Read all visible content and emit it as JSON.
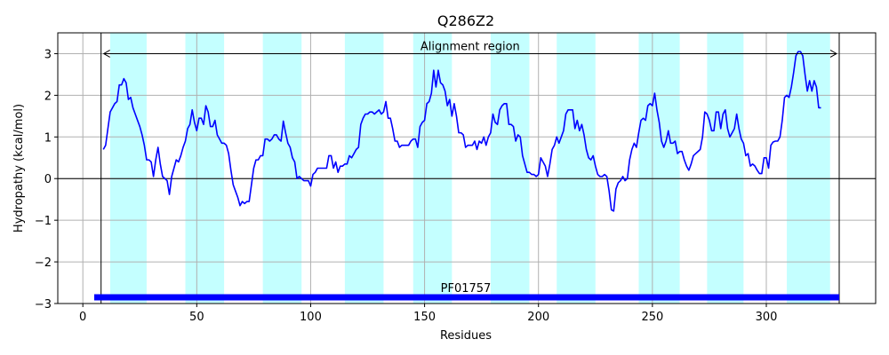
{
  "chart_data": {
    "type": "line",
    "title": "Q286Z2",
    "xlabel": "Residues",
    "ylabel": "Hydropathy (kcal/mol)",
    "xlim": [
      -11,
      348
    ],
    "ylim": [
      -3,
      3.5
    ],
    "x_ticks": [
      0,
      50,
      100,
      150,
      200,
      250,
      300
    ],
    "y_ticks": [
      -3,
      -2,
      -1,
      0,
      1,
      2,
      3
    ],
    "y_tick_labels": [
      "−3",
      "−2",
      "−1",
      "0",
      "1",
      "2",
      "3"
    ],
    "grid": true,
    "line_color": "#0000ff",
    "band_color": "#c4ffff",
    "domain_color": "#0000ff",
    "highlight_bands": [
      [
        12,
        28
      ],
      [
        45,
        62
      ],
      [
        79,
        96
      ],
      [
        115,
        132
      ],
      [
        145,
        162
      ],
      [
        179,
        196
      ],
      [
        208,
        225
      ],
      [
        244,
        262
      ],
      [
        274,
        290
      ],
      [
        309,
        328
      ]
    ],
    "alignment_region": {
      "label": "Alignment region",
      "start": 8,
      "end": 332,
      "y": 3
    },
    "domain": {
      "label": "PF01757",
      "start": 5,
      "end": 332,
      "y": -2.85
    },
    "series": [
      {
        "points": [
          [
            9,
            0.7
          ],
          [
            10,
            0.8
          ],
          [
            11,
            1.2
          ],
          [
            12,
            1.6
          ],
          [
            13,
            1.7
          ],
          [
            14,
            1.8
          ],
          [
            15,
            1.85
          ],
          [
            16,
            2.25
          ],
          [
            17,
            2.25
          ],
          [
            18,
            2.4
          ],
          [
            19,
            2.3
          ],
          [
            20,
            1.9
          ],
          [
            21,
            1.95
          ],
          [
            22,
            1.7
          ],
          [
            23,
            1.55
          ],
          [
            24,
            1.4
          ],
          [
            25,
            1.25
          ],
          [
            26,
            1.05
          ],
          [
            27,
            0.8
          ],
          [
            28,
            0.45
          ],
          [
            29,
            0.45
          ],
          [
            30,
            0.4
          ],
          [
            31,
            0.05
          ],
          [
            32,
            0.45
          ],
          [
            33,
            0.75
          ],
          [
            34,
            0.35
          ],
          [
            35,
            0.05
          ],
          [
            36,
            0.0
          ],
          [
            37,
            -0.05
          ],
          [
            38,
            -0.38
          ],
          [
            39,
            0.05
          ],
          [
            40,
            0.25
          ],
          [
            41,
            0.45
          ],
          [
            42,
            0.4
          ],
          [
            43,
            0.55
          ],
          [
            44,
            0.75
          ],
          [
            45,
            0.9
          ],
          [
            46,
            1.2
          ],
          [
            47,
            1.3
          ],
          [
            48,
            1.65
          ],
          [
            49,
            1.35
          ],
          [
            50,
            1.15
          ],
          [
            51,
            1.45
          ],
          [
            52,
            1.45
          ],
          [
            53,
            1.3
          ],
          [
            54,
            1.75
          ],
          [
            55,
            1.6
          ],
          [
            56,
            1.25
          ],
          [
            57,
            1.25
          ],
          [
            58,
            1.4
          ],
          [
            59,
            1.05
          ],
          [
            60,
            0.95
          ],
          [
            61,
            0.85
          ],
          [
            62,
            0.85
          ],
          [
            63,
            0.8
          ],
          [
            64,
            0.6
          ],
          [
            65,
            0.2
          ],
          [
            66,
            -0.15
          ],
          [
            67,
            -0.3
          ],
          [
            68,
            -0.45
          ],
          [
            69,
            -0.65
          ],
          [
            70,
            -0.55
          ],
          [
            71,
            -0.6
          ],
          [
            72,
            -0.55
          ],
          [
            73,
            -0.55
          ],
          [
            74,
            -0.15
          ],
          [
            75,
            0.25
          ],
          [
            76,
            0.45
          ],
          [
            77,
            0.45
          ],
          [
            78,
            0.55
          ],
          [
            79,
            0.55
          ],
          [
            80,
            0.95
          ],
          [
            81,
            0.95
          ],
          [
            82,
            0.9
          ],
          [
            83,
            0.95
          ],
          [
            84,
            1.05
          ],
          [
            85,
            1.05
          ],
          [
            86,
            0.95
          ],
          [
            87,
            0.9
          ],
          [
            88,
            1.38
          ],
          [
            89,
            1.1
          ],
          [
            90,
            0.85
          ],
          [
            91,
            0.75
          ],
          [
            92,
            0.5
          ],
          [
            93,
            0.4
          ],
          [
            94,
            0.0
          ],
          [
            95,
            0.05
          ],
          [
            96,
            0.0
          ],
          [
            97,
            -0.05
          ],
          [
            98,
            -0.05
          ],
          [
            99,
            -0.05
          ],
          [
            100,
            -0.18
          ],
          [
            101,
            0.1
          ],
          [
            102,
            0.15
          ],
          [
            103,
            0.25
          ],
          [
            104,
            0.25
          ],
          [
            105,
            0.25
          ],
          [
            106,
            0.25
          ],
          [
            107,
            0.25
          ],
          [
            108,
            0.55
          ],
          [
            109,
            0.55
          ],
          [
            110,
            0.25
          ],
          [
            111,
            0.4
          ],
          [
            112,
            0.15
          ],
          [
            113,
            0.3
          ],
          [
            114,
            0.3
          ],
          [
            115,
            0.35
          ],
          [
            116,
            0.35
          ],
          [
            117,
            0.55
          ],
          [
            118,
            0.5
          ],
          [
            119,
            0.6
          ],
          [
            120,
            0.7
          ],
          [
            121,
            0.75
          ],
          [
            122,
            1.3
          ],
          [
            123,
            1.45
          ],
          [
            124,
            1.55
          ],
          [
            125,
            1.55
          ],
          [
            126,
            1.6
          ],
          [
            127,
            1.6
          ],
          [
            128,
            1.55
          ],
          [
            129,
            1.6
          ],
          [
            130,
            1.65
          ],
          [
            131,
            1.55
          ],
          [
            132,
            1.6
          ],
          [
            133,
            1.85
          ],
          [
            134,
            1.45
          ],
          [
            135,
            1.45
          ],
          [
            136,
            1.2
          ],
          [
            137,
            0.9
          ],
          [
            138,
            0.9
          ],
          [
            139,
            0.75
          ],
          [
            140,
            0.8
          ],
          [
            141,
            0.8
          ],
          [
            142,
            0.8
          ],
          [
            143,
            0.8
          ],
          [
            144,
            0.9
          ],
          [
            145,
            0.95
          ],
          [
            146,
            0.95
          ],
          [
            147,
            0.75
          ],
          [
            148,
            1.25
          ],
          [
            149,
            1.35
          ],
          [
            150,
            1.4
          ],
          [
            151,
            1.8
          ],
          [
            152,
            1.85
          ],
          [
            153,
            2.05
          ],
          [
            154,
            2.6
          ],
          [
            155,
            2.2
          ],
          [
            156,
            2.6
          ],
          [
            157,
            2.3
          ],
          [
            158,
            2.25
          ],
          [
            159,
            2.1
          ],
          [
            160,
            1.75
          ],
          [
            161,
            1.9
          ],
          [
            162,
            1.5
          ],
          [
            163,
            1.8
          ],
          [
            164,
            1.5
          ],
          [
            165,
            1.1
          ],
          [
            166,
            1.1
          ],
          [
            167,
            1.05
          ],
          [
            168,
            0.75
          ],
          [
            169,
            0.8
          ],
          [
            170,
            0.8
          ],
          [
            171,
            0.8
          ],
          [
            172,
            0.9
          ],
          [
            173,
            0.7
          ],
          [
            174,
            0.9
          ],
          [
            175,
            0.85
          ],
          [
            176,
            1.0
          ],
          [
            177,
            0.8
          ],
          [
            178,
            1.0
          ],
          [
            179,
            1.1
          ],
          [
            180,
            1.55
          ],
          [
            181,
            1.35
          ],
          [
            182,
            1.3
          ],
          [
            183,
            1.65
          ],
          [
            184,
            1.75
          ],
          [
            185,
            1.8
          ],
          [
            186,
            1.8
          ],
          [
            187,
            1.3
          ],
          [
            188,
            1.3
          ],
          [
            189,
            1.25
          ],
          [
            190,
            0.9
          ],
          [
            191,
            1.05
          ],
          [
            192,
            1.0
          ],
          [
            193,
            0.55
          ],
          [
            194,
            0.35
          ],
          [
            195,
            0.15
          ],
          [
            196,
            0.15
          ],
          [
            197,
            0.1
          ],
          [
            198,
            0.1
          ],
          [
            199,
            0.05
          ],
          [
            200,
            0.1
          ],
          [
            201,
            0.5
          ],
          [
            202,
            0.4
          ],
          [
            203,
            0.3
          ],
          [
            204,
            0.05
          ],
          [
            205,
            0.35
          ],
          [
            206,
            0.7
          ],
          [
            207,
            0.8
          ],
          [
            208,
            1.0
          ],
          [
            209,
            0.85
          ],
          [
            210,
            1.0
          ],
          [
            211,
            1.15
          ],
          [
            212,
            1.55
          ],
          [
            213,
            1.65
          ],
          [
            214,
            1.65
          ],
          [
            215,
            1.65
          ],
          [
            216,
            1.2
          ],
          [
            217,
            1.4
          ],
          [
            218,
            1.15
          ],
          [
            219,
            1.3
          ],
          [
            220,
            1.05
          ],
          [
            221,
            0.7
          ],
          [
            222,
            0.5
          ],
          [
            223,
            0.45
          ],
          [
            224,
            0.55
          ],
          [
            225,
            0.3
          ],
          [
            226,
            0.1
          ],
          [
            227,
            0.05
          ],
          [
            228,
            0.05
          ],
          [
            229,
            0.1
          ],
          [
            230,
            0.05
          ],
          [
            231,
            -0.3
          ],
          [
            232,
            -0.75
          ],
          [
            233,
            -0.78
          ],
          [
            234,
            -0.25
          ],
          [
            235,
            -0.1
          ],
          [
            236,
            -0.05
          ],
          [
            237,
            0.05
          ],
          [
            238,
            -0.05
          ],
          [
            239,
            0.0
          ],
          [
            240,
            0.45
          ],
          [
            241,
            0.7
          ],
          [
            242,
            0.85
          ],
          [
            243,
            0.75
          ],
          [
            244,
            1.1
          ],
          [
            245,
            1.4
          ],
          [
            246,
            1.45
          ],
          [
            247,
            1.4
          ],
          [
            248,
            1.75
          ],
          [
            249,
            1.8
          ],
          [
            250,
            1.75
          ],
          [
            251,
            2.05
          ],
          [
            252,
            1.65
          ],
          [
            253,
            1.35
          ],
          [
            254,
            0.9
          ],
          [
            255,
            0.75
          ],
          [
            256,
            0.9
          ],
          [
            257,
            1.15
          ],
          [
            258,
            0.85
          ],
          [
            259,
            0.85
          ],
          [
            260,
            0.9
          ],
          [
            261,
            0.6
          ],
          [
            262,
            0.65
          ],
          [
            263,
            0.65
          ],
          [
            264,
            0.45
          ],
          [
            265,
            0.3
          ],
          [
            266,
            0.2
          ],
          [
            267,
            0.35
          ],
          [
            268,
            0.55
          ],
          [
            269,
            0.6
          ],
          [
            270,
            0.65
          ],
          [
            271,
            0.7
          ],
          [
            272,
            1.0
          ],
          [
            273,
            1.6
          ],
          [
            274,
            1.55
          ],
          [
            275,
            1.4
          ],
          [
            276,
            1.15
          ],
          [
            277,
            1.15
          ],
          [
            278,
            1.6
          ],
          [
            279,
            1.6
          ],
          [
            280,
            1.2
          ],
          [
            281,
            1.55
          ],
          [
            282,
            1.65
          ],
          [
            283,
            1.2
          ],
          [
            284,
            1.0
          ],
          [
            285,
            1.1
          ],
          [
            286,
            1.2
          ],
          [
            287,
            1.55
          ],
          [
            288,
            1.2
          ],
          [
            289,
            0.95
          ],
          [
            290,
            0.85
          ],
          [
            291,
            0.55
          ],
          [
            292,
            0.6
          ],
          [
            293,
            0.3
          ],
          [
            294,
            0.35
          ],
          [
            295,
            0.3
          ],
          [
            296,
            0.2
          ],
          [
            297,
            0.12
          ],
          [
            298,
            0.12
          ],
          [
            299,
            0.5
          ],
          [
            300,
            0.5
          ],
          [
            301,
            0.25
          ],
          [
            302,
            0.8
          ],
          [
            303,
            0.88
          ],
          [
            304,
            0.9
          ],
          [
            305,
            0.9
          ],
          [
            306,
            1.0
          ],
          [
            307,
            1.4
          ],
          [
            308,
            1.95
          ],
          [
            309,
            2.0
          ],
          [
            310,
            1.95
          ],
          [
            311,
            2.2
          ],
          [
            312,
            2.55
          ],
          [
            313,
            2.95
          ],
          [
            314,
            3.05
          ],
          [
            315,
            3.05
          ],
          [
            316,
            2.95
          ],
          [
            317,
            2.5
          ],
          [
            318,
            2.1
          ],
          [
            319,
            2.35
          ],
          [
            320,
            2.1
          ],
          [
            321,
            2.35
          ],
          [
            322,
            2.2
          ],
          [
            323,
            1.7
          ],
          [
            324,
            1.7
          ]
        ]
      }
    ]
  }
}
